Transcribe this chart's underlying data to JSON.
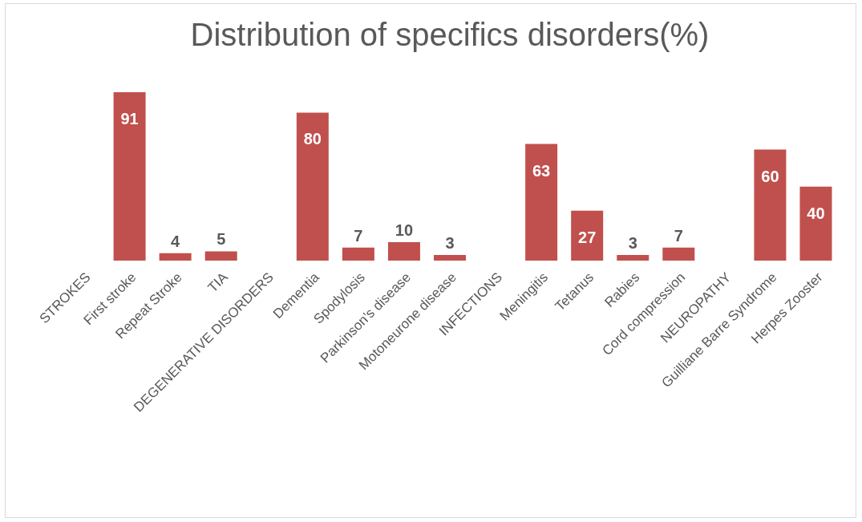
{
  "chart_data": {
    "type": "bar",
    "title": "Distribution of specifics disorders(%)",
    "categories": [
      "STROKES",
      "First stroke",
      "Repeat Stroke",
      "TIA",
      "DEGENERATIVE DISORDERS",
      "Dementia",
      "Spodylosis",
      "Parkinson’s disease",
      "Motoneurone disease",
      "INFECTIONS",
      "Meningitis",
      "Tetanus",
      "Rabies",
      "Cord compression",
      "NEUROPATHY",
      "Guilliane Barre Syndrome",
      "Herpes Zooster"
    ],
    "values": [
      null,
      91,
      4,
      5,
      null,
      80,
      7,
      10,
      3,
      null,
      63,
      27,
      3,
      7,
      null,
      60,
      40
    ],
    "color": "#c0504d",
    "data_labels": true
  }
}
